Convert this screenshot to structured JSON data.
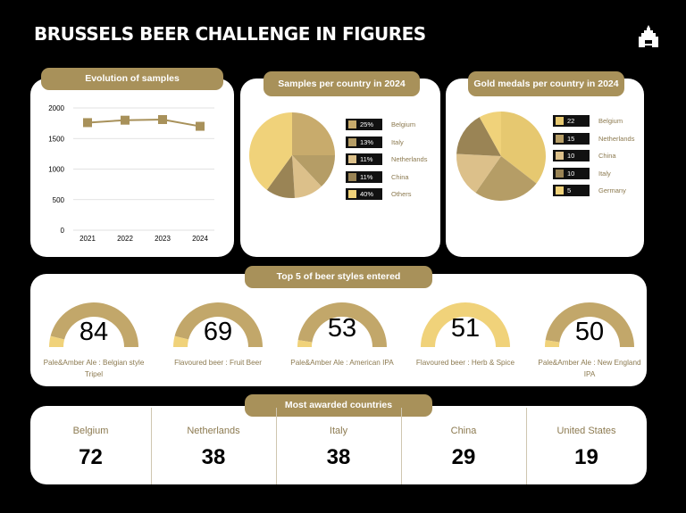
{
  "title": "BRUSSELS BEER CHALLENGE IN FIGURES",
  "logo_icon": "castle-icon",
  "colors": {
    "background": "#000000",
    "accent": "#a8915a",
    "gold_light": "#f0d27a",
    "gold_mid": "#c8ab6c",
    "gold_dark": "#a8915a",
    "gold_brown": "#9a8455",
    "gold_sand": "#dcc08a",
    "label_text": "#8c7a50"
  },
  "chart_data": [
    {
      "type": "line",
      "title": "Evolution of samples",
      "x": [
        "2021",
        "2022",
        "2023",
        "2024"
      ],
      "series": [
        {
          "values": [
            1760,
            1800,
            1810,
            1700
          ]
        }
      ],
      "yticks": [
        "2000",
        "1500",
        "1000",
        "500",
        "0"
      ],
      "ylim": [
        0,
        2000
      ],
      "grid": true
    },
    {
      "type": "pie",
      "title": "Samples per country in 2024",
      "slices": [
        {
          "label": "Belgium",
          "value": 25,
          "display": "25%",
          "color": "#c8ab6c"
        },
        {
          "label": "Italy",
          "value": 13,
          "display": "13%",
          "color": "#b59d66"
        },
        {
          "label": "Netherlands",
          "value": 11,
          "display": "11%",
          "color": "#dcc08a"
        },
        {
          "label": "China",
          "value": 11,
          "display": "11%",
          "color": "#9a8455"
        },
        {
          "label": "Others",
          "value": 40,
          "display": "40%",
          "color": "#f0d27a"
        }
      ],
      "legend_position": "right"
    },
    {
      "type": "pie",
      "title": "Gold medals per country in 2024",
      "slices": [
        {
          "label": "Belgium",
          "value": 22,
          "display": "22",
          "color": "#e6c870"
        },
        {
          "label": "Netherlands",
          "value": 15,
          "display": "15",
          "color": "#b59d66"
        },
        {
          "label": "China",
          "value": 10,
          "display": "10",
          "color": "#dcc08a"
        },
        {
          "label": "Italy",
          "value": 10,
          "display": "10",
          "color": "#9a8455"
        },
        {
          "label": "Germany",
          "value": 5,
          "display": "5",
          "color": "#f0d27a"
        }
      ],
      "legend_position": "right"
    }
  ],
  "styles": {
    "title": "Top 5 of beer styles entered",
    "items": [
      {
        "value": "84",
        "label": "Pale&Amber Ale : Belgian style Tripel",
        "fill": 0.08
      },
      {
        "value": "69",
        "label": "Flavoured beer : Fruit Beer",
        "fill": 0.08
      },
      {
        "value": "53",
        "label": "Pale&Amber Ale : American IPA",
        "fill": 0.05
      },
      {
        "value": "51",
        "label": "Flavoured beer : Herb & Spice",
        "fill": 1.0
      },
      {
        "value": "50",
        "label": "Pale&Amber Ale : New England IPA",
        "fill": 0.05
      }
    ]
  },
  "awarded": {
    "title": "Most awarded countries",
    "items": [
      {
        "country": "Belgium",
        "value": "72"
      },
      {
        "country": "Netherlands",
        "value": "38"
      },
      {
        "country": "Italy",
        "value": "38"
      },
      {
        "country": "China",
        "value": "29"
      },
      {
        "country": "United States",
        "value": "19"
      }
    ]
  }
}
